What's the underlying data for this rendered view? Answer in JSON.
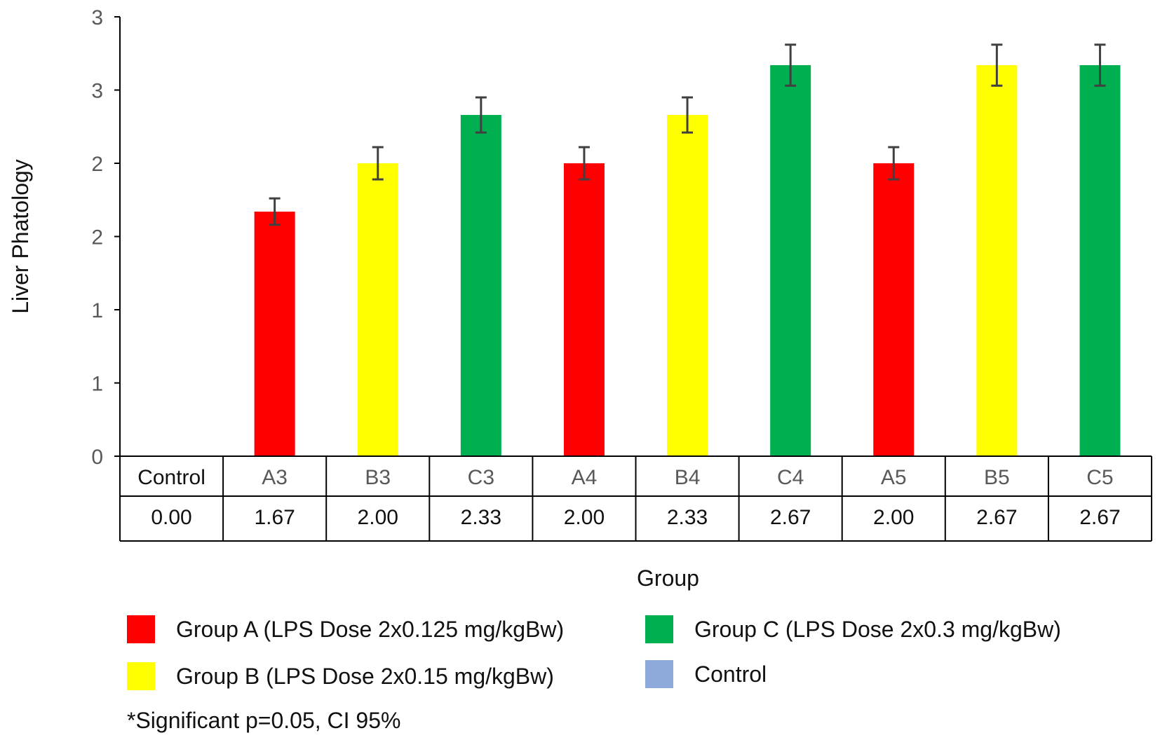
{
  "chart_data": {
    "type": "bar",
    "title": "",
    "xlabel": "Group",
    "ylabel": "Liver Phatology",
    "categories": [
      "Control",
      "A3",
      "B3",
      "C3",
      "A4",
      "B4",
      "C4",
      "A5",
      "B5",
      "C5"
    ],
    "values": [
      0.0,
      1.67,
      2.0,
      2.33,
      2.0,
      2.33,
      2.67,
      2.0,
      2.67,
      2.67
    ],
    "error": [
      0,
      0.09,
      0.11,
      0.12,
      0.11,
      0.12,
      0.14,
      0.11,
      0.14,
      0.14
    ],
    "table_values": [
      "0.00",
      "1.67",
      "2.00",
      "2.33",
      "2.00",
      "2.33",
      "2.67",
      "2.00",
      "2.67",
      "2.67"
    ],
    "bar_groups": [
      "Control",
      "A",
      "B",
      "C",
      "A",
      "B",
      "C",
      "A",
      "B",
      "C"
    ],
    "ylim": [
      0,
      3
    ],
    "yticks": [
      0,
      0.5,
      1,
      1.5,
      2,
      2.5,
      3
    ],
    "ytick_labels": [
      "0",
      "1",
      "1",
      "2",
      "2",
      "3",
      "3"
    ],
    "grid": false,
    "legend_position": "bottom"
  },
  "colors": {
    "A": "#ff0000",
    "B": "#ffff00",
    "C": "#00b050",
    "Control": "#8eaadb",
    "axis": "#000000",
    "error_bar": "#404040",
    "tick_text": "#595959"
  },
  "legend": {
    "group_a": "Group A (LPS Dose 2x0.125 mg/kgBw)",
    "group_b": "Group  B (LPS Dose 2x0.15 mg/kgBw)",
    "group_c": "Group C (LPS Dose 2x0.3 mg/kgBw)",
    "control": "Control"
  },
  "note": "*Significant p=0.05, CI 95%"
}
